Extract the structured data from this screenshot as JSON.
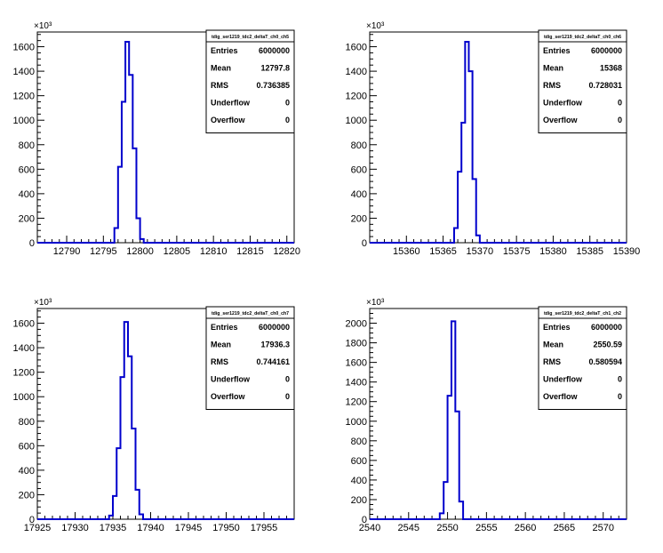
{
  "chart_data": [
    {
      "type": "histogram",
      "exponent_label": "×10³",
      "xlim": [
        12786,
        12821
      ],
      "ylim": [
        0,
        1720
      ],
      "x_ticks": [
        12790,
        12795,
        12800,
        12805,
        12810,
        12815,
        12820
      ],
      "y_ticks": [
        0,
        200,
        400,
        600,
        800,
        1000,
        1200,
        1400,
        1600
      ],
      "bin_width": 0.5,
      "bins": [
        {
          "x": 12796.5,
          "y": 120
        },
        {
          "x": 12797.0,
          "y": 620
        },
        {
          "x": 12797.5,
          "y": 1150
        },
        {
          "x": 12798.0,
          "y": 1640
        },
        {
          "x": 12798.5,
          "y": 1370
        },
        {
          "x": 12799.0,
          "y": 770
        },
        {
          "x": 12799.5,
          "y": 200
        },
        {
          "x": 12800.0,
          "y": 30
        }
      ],
      "stats": {
        "title": "tdig_ser1219_tdc2_deltaT_ch0_ch5",
        "rows": [
          {
            "label": "Entries",
            "value": "6000000"
          },
          {
            "label": "Mean",
            "value": "12797.8"
          },
          {
            "label": "RMS",
            "value": "0.736385"
          },
          {
            "label": "Underflow",
            "value": "0"
          },
          {
            "label": "Overflow",
            "value": "0"
          }
        ]
      }
    },
    {
      "type": "histogram",
      "exponent_label": "×10³",
      "xlim": [
        15355,
        15390
      ],
      "ylim": [
        0,
        1720
      ],
      "x_ticks": [
        15360,
        15365,
        15370,
        15375,
        15380,
        15385,
        15390
      ],
      "y_ticks": [
        0,
        200,
        400,
        600,
        800,
        1000,
        1200,
        1400,
        1600
      ],
      "bin_width": 0.5,
      "bins": [
        {
          "x": 15366.5,
          "y": 120
        },
        {
          "x": 15367.0,
          "y": 580
        },
        {
          "x": 15367.5,
          "y": 980
        },
        {
          "x": 15368.0,
          "y": 1640
        },
        {
          "x": 15368.5,
          "y": 1400
        },
        {
          "x": 15369.0,
          "y": 520
        },
        {
          "x": 15369.5,
          "y": 60
        }
      ],
      "stats": {
        "title": "tdig_ser1219_tdc2_deltaT_ch0_ch6",
        "rows": [
          {
            "label": "Entries",
            "value": "6000000"
          },
          {
            "label": "Mean",
            "value": "15368"
          },
          {
            "label": "RMS",
            "value": "0.728031"
          },
          {
            "label": "Underflow",
            "value": "0"
          },
          {
            "label": "Overflow",
            "value": "0"
          }
        ]
      }
    },
    {
      "type": "histogram",
      "exponent_label": "×10³",
      "xlim": [
        17925,
        17959
      ],
      "ylim": [
        0,
        1720
      ],
      "x_ticks": [
        17925,
        17930,
        17935,
        17940,
        17945,
        17950,
        17955
      ],
      "y_ticks": [
        0,
        200,
        400,
        600,
        800,
        1000,
        1200,
        1400,
        1600
      ],
      "bin_width": 0.5,
      "bins": [
        {
          "x": 17934.5,
          "y": 30
        },
        {
          "x": 17935.0,
          "y": 190
        },
        {
          "x": 17935.5,
          "y": 580
        },
        {
          "x": 17936.0,
          "y": 1160
        },
        {
          "x": 17936.5,
          "y": 1610
        },
        {
          "x": 17937.0,
          "y": 1330
        },
        {
          "x": 17937.5,
          "y": 740
        },
        {
          "x": 17938.0,
          "y": 240
        },
        {
          "x": 17938.5,
          "y": 40
        }
      ],
      "stats": {
        "title": "tdig_ser1219_tdc2_deltaT_ch0_ch7",
        "rows": [
          {
            "label": "Entries",
            "value": "6000000"
          },
          {
            "label": "Mean",
            "value": "17936.3"
          },
          {
            "label": "RMS",
            "value": "0.744161"
          },
          {
            "label": "Underflow",
            "value": "0"
          },
          {
            "label": "Overflow",
            "value": "0"
          }
        ]
      }
    },
    {
      "type": "histogram",
      "exponent_label": "×10³",
      "xlim": [
        2540,
        2573
      ],
      "ylim": [
        0,
        2150
      ],
      "x_ticks": [
        2540,
        2545,
        2550,
        2555,
        2560,
        2565,
        2570
      ],
      "y_ticks": [
        0,
        200,
        400,
        600,
        800,
        1000,
        1200,
        1400,
        1600,
        1800,
        2000
      ],
      "bin_width": 0.5,
      "bins": [
        {
          "x": 2549.0,
          "y": 60
        },
        {
          "x": 2549.5,
          "y": 380
        },
        {
          "x": 2550.0,
          "y": 1260
        },
        {
          "x": 2550.5,
          "y": 2020
        },
        {
          "x": 2551.0,
          "y": 1100
        },
        {
          "x": 2551.5,
          "y": 180
        }
      ],
      "stats": {
        "title": "tdig_ser1219_tdc2_deltaT_ch1_ch2",
        "rows": [
          {
            "label": "Entries",
            "value": "6000000"
          },
          {
            "label": "Mean",
            "value": "2550.59"
          },
          {
            "label": "RMS",
            "value": "0.580594"
          },
          {
            "label": "Underflow",
            "value": "0"
          },
          {
            "label": "Overflow",
            "value": "0"
          }
        ]
      }
    }
  ]
}
